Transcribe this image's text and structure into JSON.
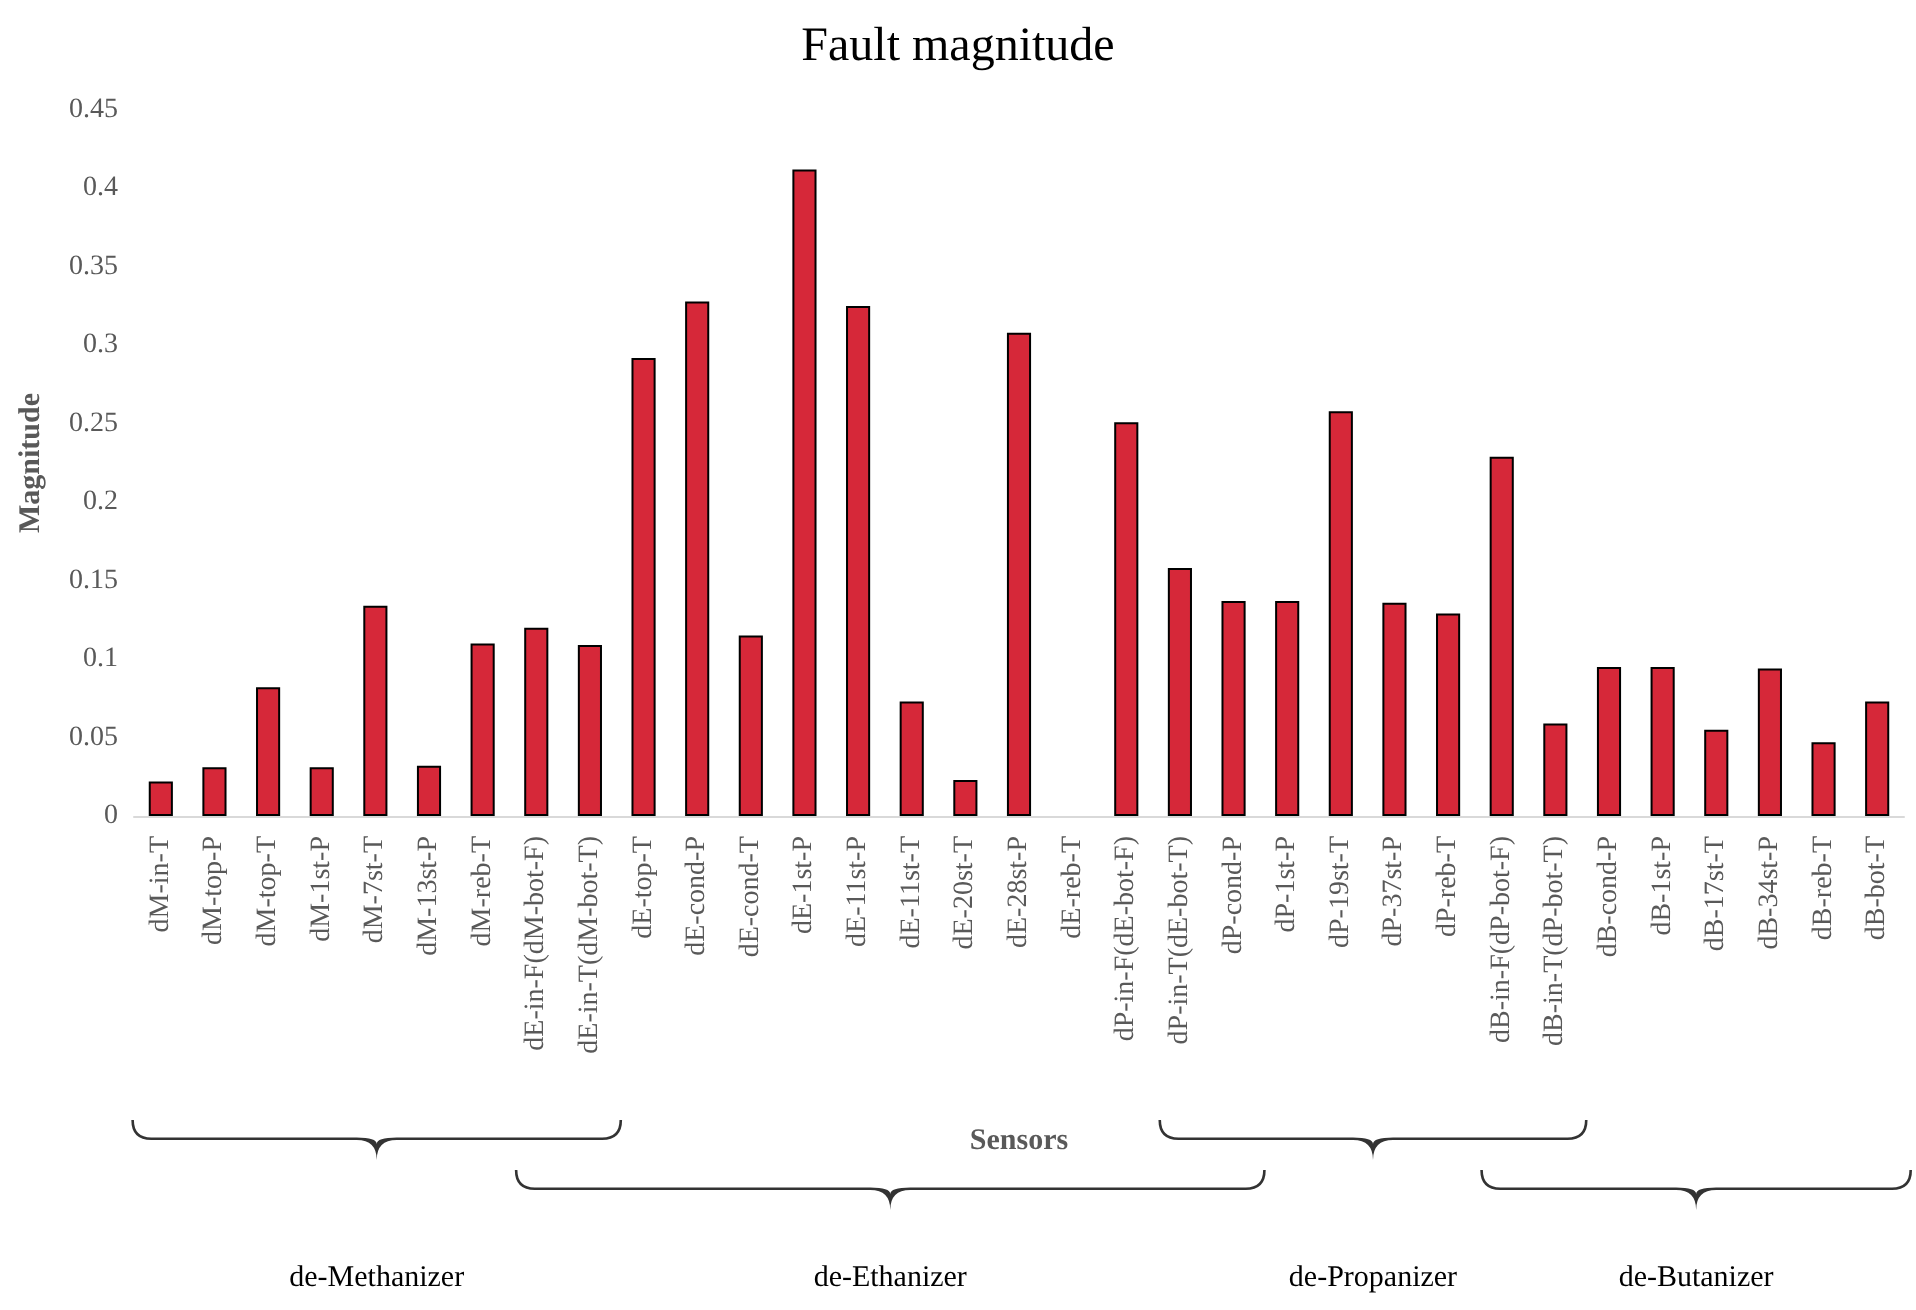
{
  "chart_data": {
    "type": "bar",
    "title": "Fault magnitude",
    "xlabel": "Sensors",
    "ylabel": "Magnitude",
    "categories": [
      "dM-in-T",
      "dM-top-P",
      "dM-top-T",
      "dM-1st-P",
      "dM-7st-T",
      "dM-13st-P",
      "dM-reb-T",
      "dE-in-F(dM-bot-F)",
      "dE-in-T(dM-bot-T)",
      "dE-top-T",
      "dE-cond-P",
      "dE-cond-T",
      "dE-1st-P",
      "dE-11st-P",
      "dE-11st-T",
      "dE-20st-T",
      "dE-28st-P",
      "dE-reb-T",
      "dP-in-F(dE-bot-F)",
      "dP-in-T(dE-bot-T)",
      "dP-cond-P",
      "dP-1st-P",
      "dP-19st-T",
      "dP-37st-P",
      "dP-reb-T",
      "dB-in-F(dP-bot-F)",
      "dB-in-T(dP-bot-T)",
      "dB-cond-P",
      "dB-1st-P",
      "dB-17st-T",
      "dB-34st-P",
      "dB-reb-T",
      "dB-bot-T"
    ],
    "values": [
      0.022,
      0.031,
      0.082,
      0.031,
      0.134,
      0.032,
      0.11,
      0.12,
      0.109,
      0.292,
      0.328,
      0.115,
      0.412,
      0.325,
      0.073,
      0.023,
      0.308,
      0,
      0.251,
      0.158,
      0.137,
      0.137,
      0.258,
      0.136,
      0.129,
      0.229,
      0.059,
      0.095,
      0.095,
      0.055,
      0.094,
      0.047,
      0.073
    ],
    "color": "#d62839",
    "ylim": [
      0,
      0.45
    ],
    "yticks": [
      0,
      0.05,
      0.1,
      0.15,
      0.2,
      0.25,
      0.3,
      0.35,
      0.4,
      0.45
    ],
    "grid": false,
    "legend": false,
    "annotations": [
      "de-Methanizer",
      "de-Ethanizer",
      "de-Propanizer",
      "de-Butanizer"
    ]
  }
}
